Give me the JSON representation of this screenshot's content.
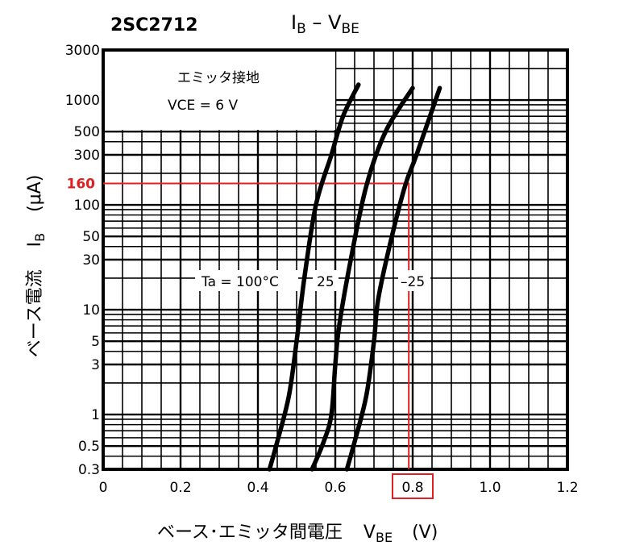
{
  "chart_data": {
    "type": "line",
    "part_number": "2SC2712",
    "title_main": "I",
    "title_sub1": "B",
    "title_dash": " – V",
    "title_sub2": "BE",
    "condition_line1": "エミッタ接地",
    "condition_line2": "VCE = 6 V",
    "xlabel_main": "ベース･エミッタ間電圧",
    "xlabel_var": "V",
    "xlabel_sub": "BE",
    "xlabel_unit": "(V)",
    "ylabel_main": "ベース電流",
    "ylabel_var": "I",
    "ylabel_sub": "B",
    "ylabel_unit": "(μA)",
    "xlim": [
      0,
      1.2
    ],
    "ylim": [
      0.3,
      3000
    ],
    "yscale": "log",
    "grid": true,
    "x_ticks": [
      0,
      0.2,
      0.4,
      0.6,
      0.8,
      1.0,
      1.2
    ],
    "x_tick_labels": [
      "0",
      "0.2",
      "0.4",
      "0.6",
      "0.8",
      "1.0",
      "1.2"
    ],
    "y_ticks": [
      0.3,
      0.5,
      1,
      3,
      5,
      10,
      30,
      50,
      100,
      300,
      500,
      1000,
      3000
    ],
    "y_tick_labels": [
      "0.3",
      "0.5",
      "1",
      "3",
      "5",
      "10",
      "30",
      "50",
      "100",
      "300",
      "500",
      "1000",
      "3000"
    ],
    "series": [
      {
        "name": "Ta = 100°C",
        "x": [
          0.43,
          0.45,
          0.48,
          0.5,
          0.52,
          0.55,
          0.59,
          0.62,
          0.66
        ],
        "y": [
          0.3,
          0.55,
          1.5,
          5,
          20,
          100,
          300,
          700,
          1400
        ]
      },
      {
        "name": "25",
        "x": [
          0.54,
          0.57,
          0.59,
          0.6,
          0.61,
          0.64,
          0.68,
          0.73,
          0.8
        ],
        "y": [
          0.3,
          0.55,
          1,
          3,
          7,
          30,
          150,
          500,
          1300
        ]
      },
      {
        "name": "–25",
        "x": [
          0.63,
          0.65,
          0.68,
          0.7,
          0.71,
          0.74,
          0.78,
          0.81,
          0.87
        ],
        "y": [
          0.3,
          0.55,
          1.5,
          5,
          12,
          40,
          150,
          300,
          1300
        ]
      }
    ],
    "highlight": {
      "x": 0.79,
      "y": 160,
      "y_label": "160",
      "x_label": "0.8",
      "color": "#e02020"
    }
  }
}
